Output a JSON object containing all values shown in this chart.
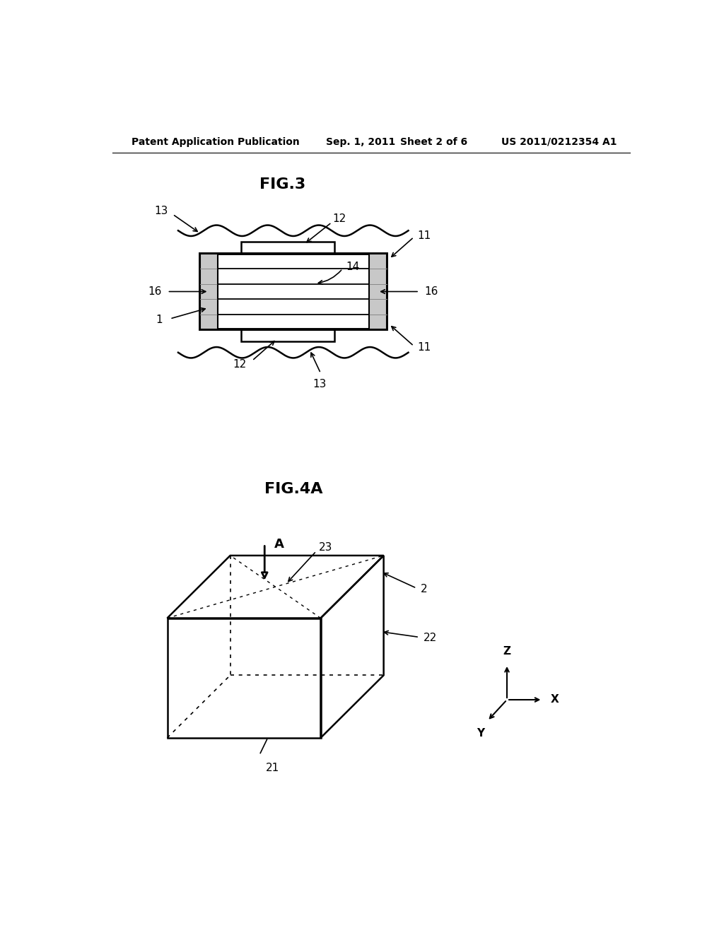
{
  "background_color": "#ffffff",
  "header_left": "Patent Application Publication",
  "header_center": "Sep. 1, 2011   Sheet 2 of 6",
  "header_right": "US 2011/0212354 A1",
  "header_fontsize": 10,
  "fig3_title": "FIG.3",
  "fig4a_title": "FIG.4A",
  "title_fontsize": 16,
  "label_fontsize": 11,
  "line_color": "#000000"
}
